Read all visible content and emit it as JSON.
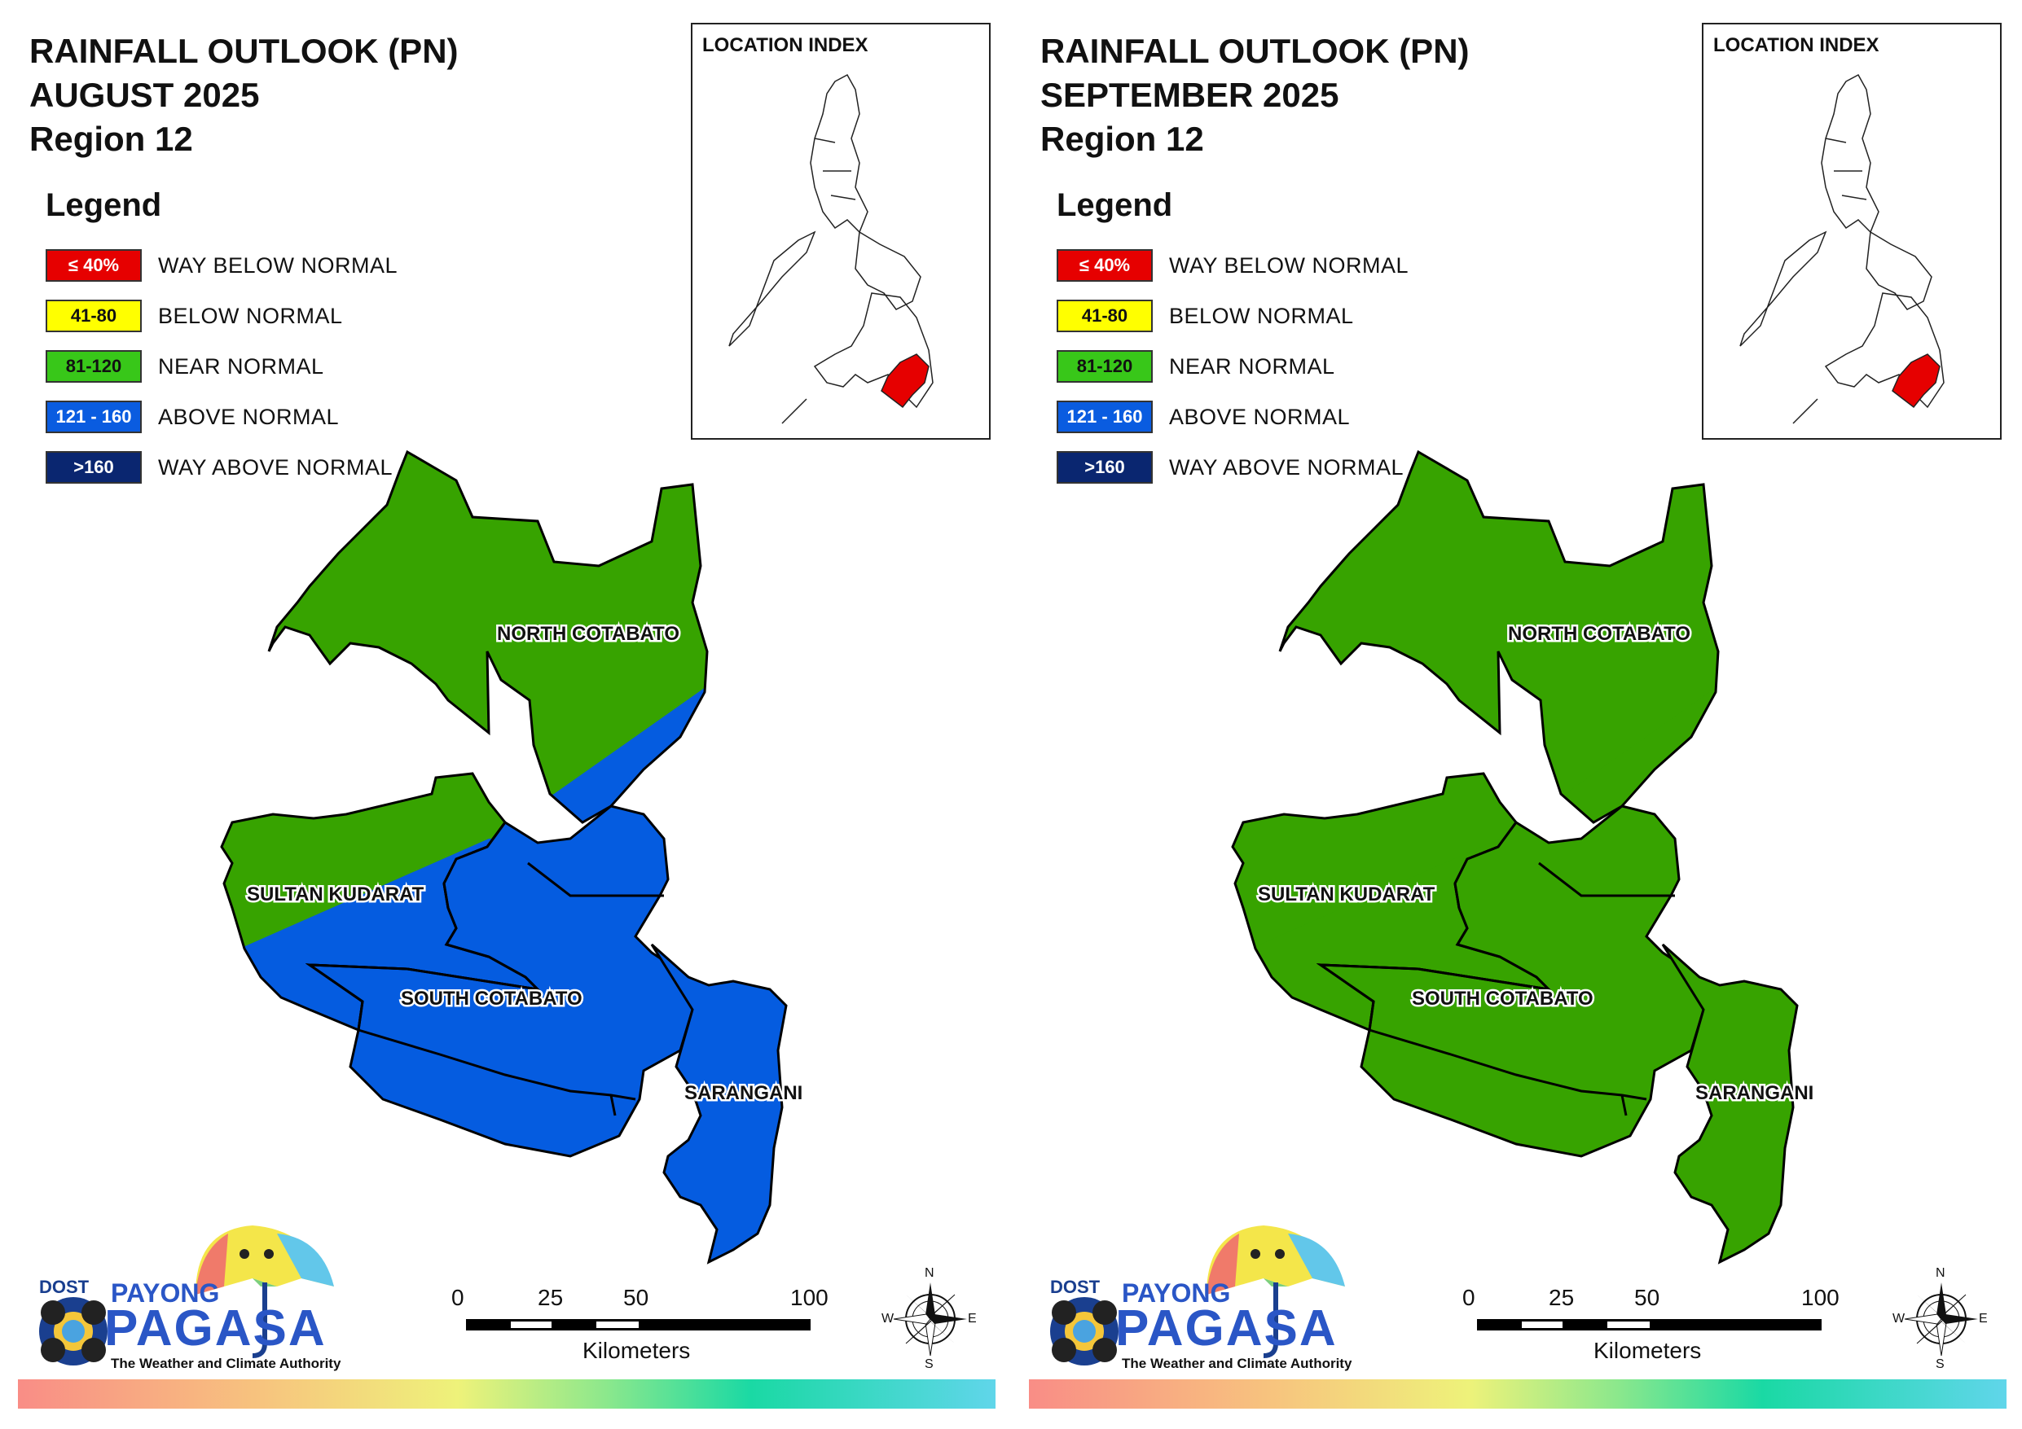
{
  "panels": [
    {
      "title_line1": "RAINFALL OUTLOOK (PN)",
      "title_line2": "AUGUST 2025",
      "title_line3": "Region 12",
      "province_colors": {
        "north_cotabato_north": "#37a300",
        "north_cotabato_south": "#055ce0",
        "sultan_kudarat_north": "#37a300",
        "sultan_kudarat_south": "#055ce0",
        "south_cotabato": "#055ce0",
        "sarangani": "#055ce0"
      }
    },
    {
      "title_line1": "RAINFALL OUTLOOK (PN)",
      "title_line2": "SEPTEMBER 2025",
      "title_line3": "Region 12",
      "province_colors": {
        "north_cotabato_north": "#37a300",
        "north_cotabato_south": "#37a300",
        "sultan_kudarat_north": "#37a300",
        "sultan_kudarat_south": "#37a300",
        "south_cotabato": "#37a300",
        "sarangani": "#37a300"
      }
    }
  ],
  "legend": {
    "title": "Legend",
    "items": [
      {
        "range": "≤ 40%",
        "label": "WAY BELOW NORMAL",
        "color": "#e60000",
        "text_color": "#ffffff"
      },
      {
        "range": "41-80",
        "label": "BELOW NORMAL",
        "color": "#ffff00",
        "text_color": "#111111"
      },
      {
        "range": "81-120",
        "label": "NEAR NORMAL",
        "color": "#38c719",
        "text_color": "#111111"
      },
      {
        "range": "121 - 160",
        "label": "ABOVE NORMAL",
        "color": "#0a5ce0",
        "text_color": "#ffffff"
      },
      {
        "range": ">160",
        "label": "WAY ABOVE NORMAL",
        "color": "#0a2670",
        "text_color": "#ffffff"
      }
    ]
  },
  "location_index": {
    "title": "LOCATION INDEX",
    "highlight_color": "#e60000"
  },
  "provinces": {
    "north_cotabato": "NORTH COTABATO",
    "sultan_kudarat": "SULTAN KUDARAT",
    "south_cotabato": "SOUTH COTABATO",
    "sarangani": "SARANGANI"
  },
  "scalebar": {
    "ticks": [
      "0",
      "25",
      "50",
      "100"
    ],
    "unit": "Kilometers"
  },
  "compass": {
    "n": "N",
    "s": "S",
    "e": "E",
    "w": "W"
  },
  "logo": {
    "dost": "DOST",
    "payong": "PAYONG",
    "pagasa": "PAGASA",
    "tagline": "The Weather and Climate Authority"
  }
}
